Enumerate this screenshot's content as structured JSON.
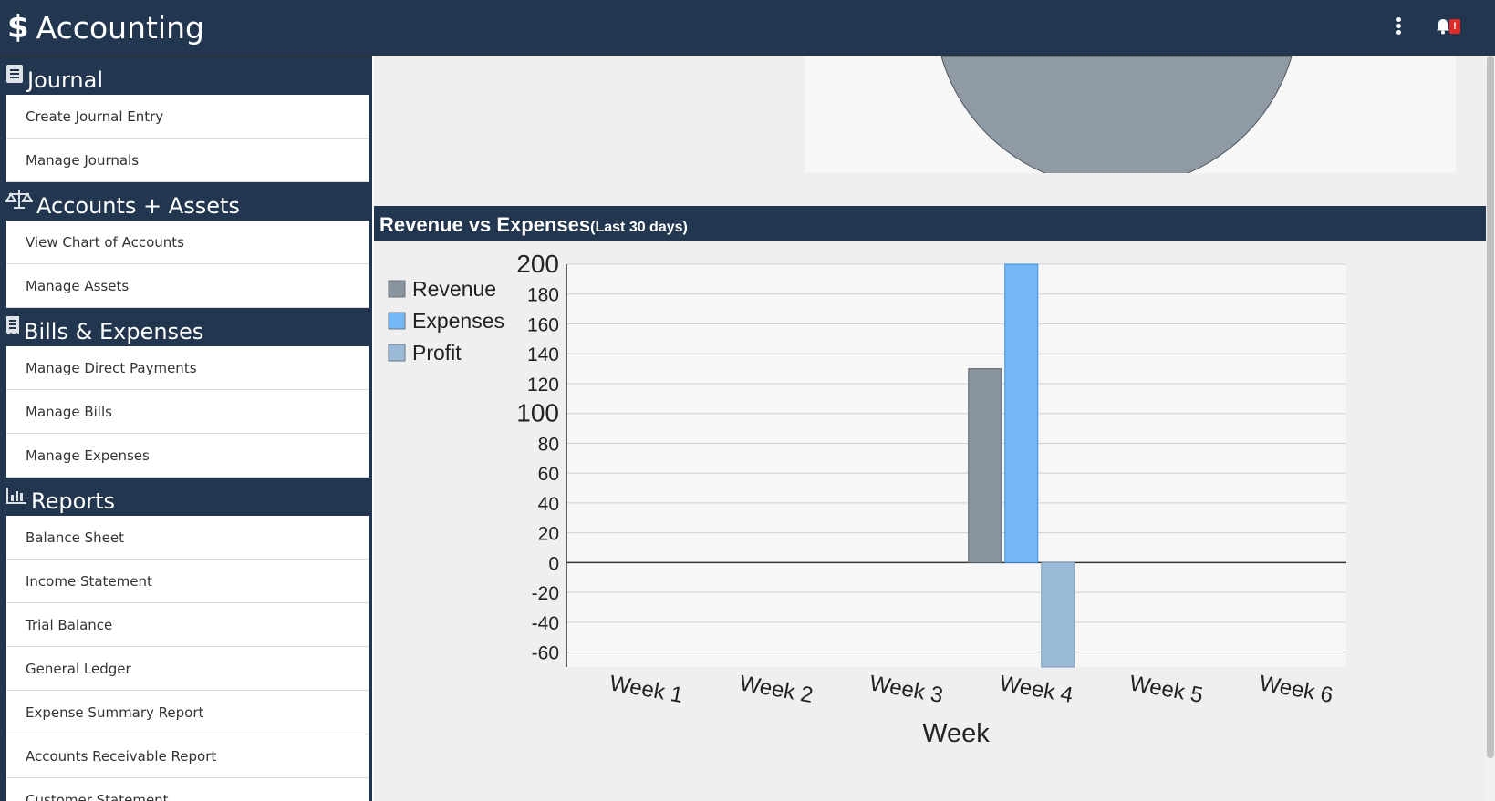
{
  "app": {
    "title": "Accounting",
    "logo_icon": "dollar-icon"
  },
  "header": {
    "notification_badge": "!"
  },
  "sidebar": {
    "sections": [
      {
        "title": "Journal",
        "icon": "journal-icon",
        "items": [
          "Create Journal Entry",
          "Manage Journals"
        ]
      },
      {
        "title": "Accounts + Assets",
        "icon": "scale-icon",
        "items": [
          "View Chart of Accounts",
          "Manage Assets"
        ]
      },
      {
        "title": "Bills & Expenses",
        "icon": "receipt-icon",
        "items": [
          "Manage Direct Payments",
          "Manage Bills",
          "Manage Expenses"
        ]
      },
      {
        "title": "Reports",
        "icon": "bar-chart-icon",
        "items": [
          "Balance Sheet",
          "Income Statement",
          "Trial Balance",
          "General Ledger",
          "Expense Summary Report",
          "Accounts Receivable Report",
          "Customer Statement"
        ]
      }
    ]
  },
  "card": {
    "title": "Revenue vs Expenses",
    "subtitle": "(Last 30 days)"
  },
  "chart_data": {
    "type": "bar",
    "categories": [
      "Week 1",
      "Week 2",
      "Week 3",
      "Week 4",
      "Week 5",
      "Week 6"
    ],
    "series": [
      {
        "name": "Revenue",
        "color": "#8a949e",
        "values": [
          0,
          0,
          0,
          130,
          0,
          0
        ]
      },
      {
        "name": "Expenses",
        "color": "#74b8f7",
        "values": [
          0,
          0,
          0,
          200,
          0,
          0
        ]
      },
      {
        "name": "Profit",
        "color": "#9bbad8",
        "values": [
          0,
          0,
          0,
          -70,
          0,
          0
        ]
      }
    ],
    "xlabel": "Week",
    "ylabel": "",
    "ylim": [
      -70,
      200
    ],
    "yticks": [
      200,
      180,
      160,
      140,
      120,
      100,
      80,
      60,
      40,
      20,
      0,
      -20,
      -40,
      -60
    ],
    "legend": "left",
    "grid": true
  }
}
